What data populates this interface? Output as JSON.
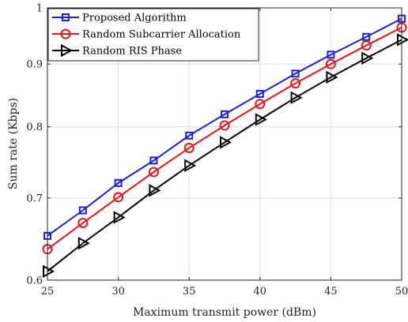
{
  "chart_data": {
    "type": "line",
    "title": "",
    "xlabel": "Maximum transmit power (dBm)",
    "ylabel": "Sum rate (Kbps)",
    "xlim": [
      25,
      50
    ],
    "ylim": [
      0.6,
      1.0
    ],
    "yscale": "log",
    "grid": true,
    "legend_position": "top-left",
    "x_ticks": [
      "25",
      "30",
      "35",
      "40",
      "45",
      "50"
    ],
    "y_ticks": [
      "0.6",
      "0.7",
      "0.8",
      "0.9",
      "1"
    ],
    "x": [
      25,
      27.5,
      30,
      32.5,
      35,
      37.5,
      40,
      42.5,
      45,
      47.5,
      50
    ],
    "series": [
      {
        "name": "Proposed Algorithm",
        "color": "#1f1fd9",
        "marker": "square",
        "values": [
          0.652,
          0.684,
          0.72,
          0.751,
          0.787,
          0.819,
          0.851,
          0.884,
          0.916,
          0.947,
          0.98
        ]
      },
      {
        "name": "Random Subcarrier Allocation",
        "color": "#e8141c",
        "marker": "circle",
        "values": [
          0.636,
          0.668,
          0.701,
          0.735,
          0.769,
          0.802,
          0.835,
          0.868,
          0.9,
          0.932,
          0.964
        ]
      },
      {
        "name": "Random RIS Phase",
        "color": "#000000",
        "marker": "triangle-right",
        "values": [
          0.61,
          0.643,
          0.675,
          0.71,
          0.744,
          0.777,
          0.811,
          0.845,
          0.878,
          0.91,
          0.942
        ]
      }
    ]
  }
}
